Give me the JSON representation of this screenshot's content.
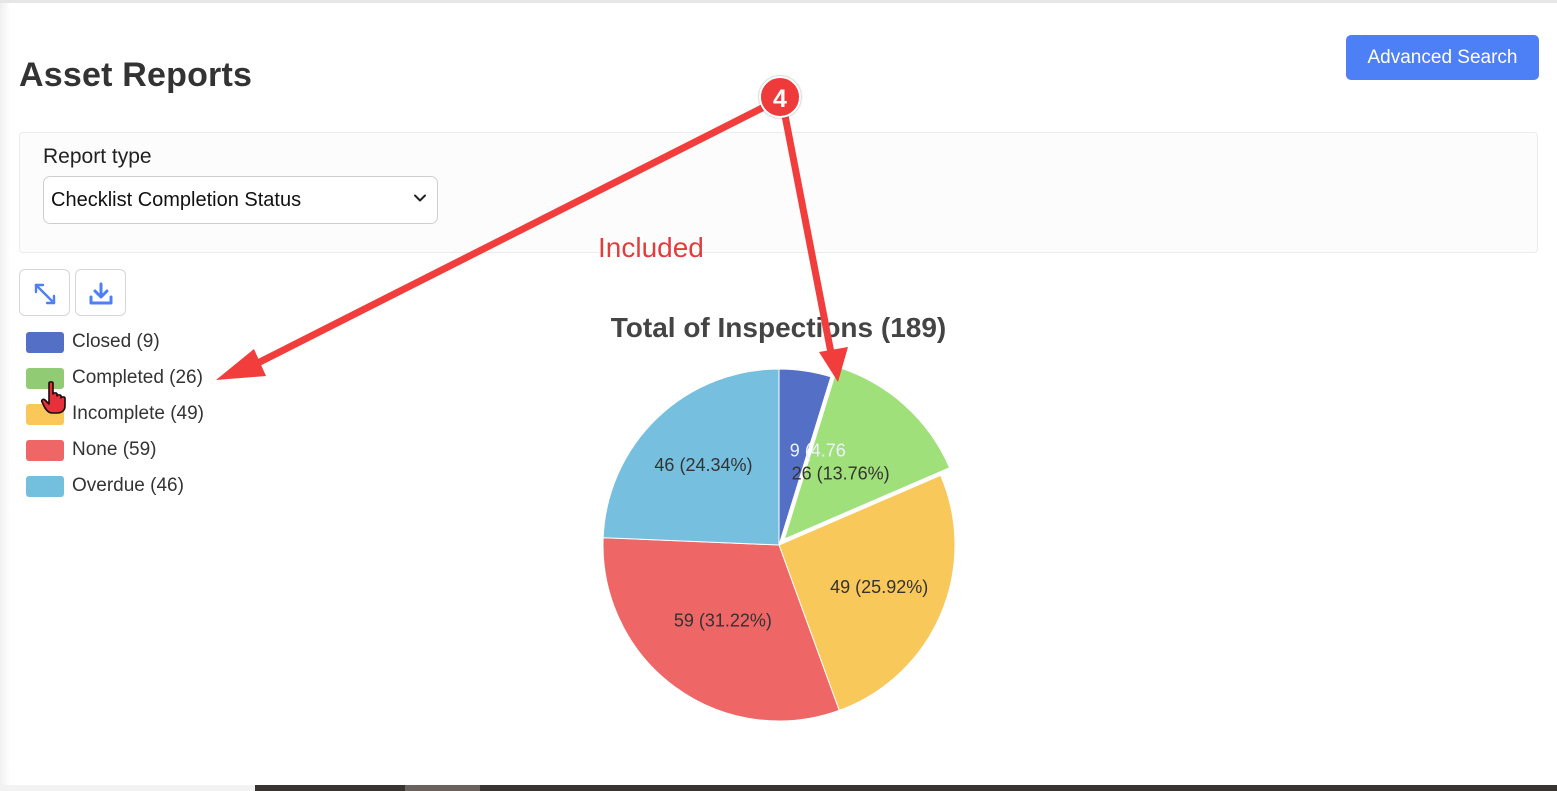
{
  "page": {
    "title": "Asset Reports"
  },
  "header": {
    "advanced_search_label": "Advanced Search"
  },
  "filters": {
    "report_type_label": "Report type",
    "report_type_value": "Checklist Completion Status"
  },
  "toolbar": {
    "expand_icon": "expand-icon",
    "download_icon": "download-icon"
  },
  "legend": [
    {
      "label": "Closed (9)",
      "color": "#5470c6"
    },
    {
      "label": "Completed (26)",
      "color": "#91cc75"
    },
    {
      "label": "Incomplete (49)",
      "color": "#fac858"
    },
    {
      "label": "None (59)",
      "color": "#ee6666"
    },
    {
      "label": "Overdue (46)",
      "color": "#73c0de"
    }
  ],
  "chart_data": {
    "type": "pie",
    "title": "Total of Inspections (189)",
    "categories": [
      "Closed",
      "Completed",
      "Incomplete",
      "None",
      "Overdue"
    ],
    "values": [
      9,
      26,
      49,
      59,
      46
    ],
    "data_labels": [
      "9 (4.76",
      "26 (13.76%)",
      "49 (25.92%)",
      "59 (31.22%)",
      "46 (24.34%)"
    ],
    "colors": [
      "#5470c6",
      "#a0e07a",
      "#f9c85a",
      "#ee6666",
      "#76bfdf"
    ],
    "highlighted": "Completed"
  },
  "annotations": {
    "step_number": "4",
    "note": "Included",
    "color": "#f23d3d"
  }
}
